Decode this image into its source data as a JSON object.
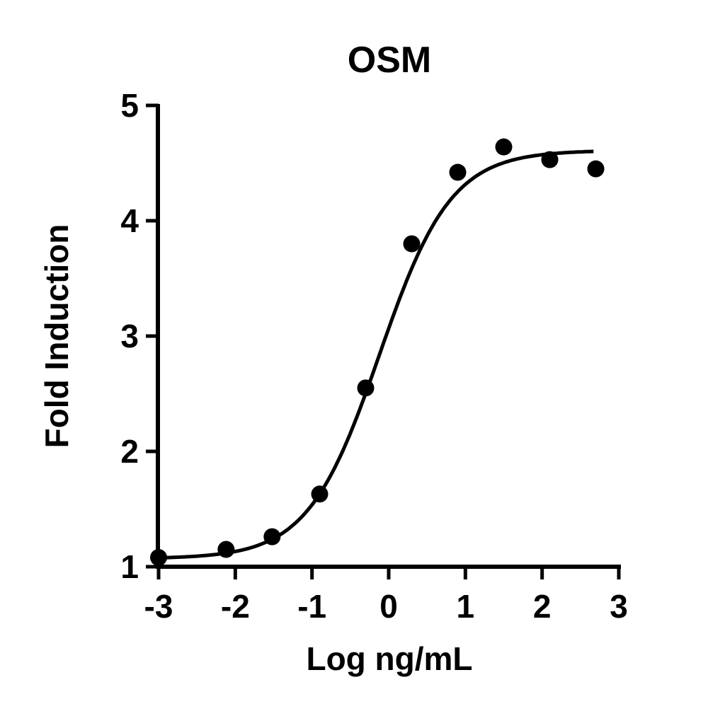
{
  "chart_data": {
    "type": "scatter",
    "title": "OSM",
    "xlabel": "Log ng/mL",
    "ylabel": "Fold Induction",
    "xlim": [
      -3,
      3
    ],
    "ylim": [
      1,
      5
    ],
    "x_ticks": [
      -3,
      -2,
      -1,
      0,
      1,
      2,
      3
    ],
    "x_tick_labels": [
      "-3",
      "-2",
      "-1",
      "0",
      "1",
      "2",
      "3"
    ],
    "y_ticks": [
      1,
      2,
      3,
      4,
      5
    ],
    "y_tick_labels": [
      "1",
      "2",
      "3",
      "4",
      "5"
    ],
    "grid": false,
    "legend": null,
    "series": [
      {
        "name": "OSM",
        "marker": "filled-circle",
        "color": "#000000",
        "x": [
          -3.0,
          -2.12,
          -1.52,
          -0.9,
          -0.3,
          0.3,
          0.9,
          1.5,
          2.1,
          2.7
        ],
        "y": [
          1.08,
          1.15,
          1.26,
          1.63,
          2.55,
          3.8,
          4.42,
          4.64,
          4.53,
          4.45
        ]
      }
    ],
    "fit_curve": {
      "model": "4PL sigmoidal dose-response",
      "bottom": 1.07,
      "top": 4.61,
      "log_ec50": -0.12,
      "hill_slope": 0.93,
      "x_range": [
        -3.0,
        2.67
      ]
    }
  }
}
